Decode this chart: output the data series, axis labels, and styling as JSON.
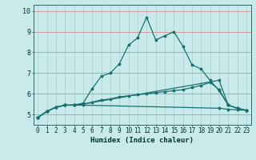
{
  "title": "",
  "xlabel": "Humidex (Indice chaleur)",
  "bg_color": "#c8eaea",
  "line_color": "#1a7070",
  "grid_color_h": "#cc9999",
  "grid_color_v": "#aacccc",
  "xlim": [
    -0.5,
    23.5
  ],
  "ylim": [
    4.5,
    10.3
  ],
  "xticks": [
    0,
    1,
    2,
    3,
    4,
    5,
    6,
    7,
    8,
    9,
    10,
    11,
    12,
    13,
    14,
    15,
    16,
    17,
    18,
    19,
    20,
    21,
    22,
    23
  ],
  "yticks": [
    5,
    6,
    7,
    8,
    9,
    10
  ],
  "line1_x": [
    0,
    1,
    2,
    3,
    4,
    5,
    6,
    7,
    8,
    9,
    10,
    11,
    12,
    13,
    14,
    15,
    16,
    17,
    18,
    19,
    20,
    21,
    22,
    23
  ],
  "line1_y": [
    4.85,
    5.15,
    5.35,
    5.45,
    5.45,
    5.55,
    6.25,
    6.85,
    7.0,
    7.45,
    8.35,
    8.7,
    9.7,
    8.6,
    8.8,
    9.0,
    8.3,
    7.4,
    7.2,
    6.65,
    6.15,
    5.45,
    5.3,
    5.2
  ],
  "line2_x": [
    0,
    1,
    2,
    3,
    4,
    5,
    6,
    7,
    8,
    9,
    10,
    11,
    12,
    13,
    14,
    15,
    16,
    17,
    18,
    19,
    20,
    21,
    22,
    23
  ],
  "line2_y": [
    4.85,
    5.15,
    5.35,
    5.45,
    5.45,
    5.5,
    5.6,
    5.7,
    5.75,
    5.85,
    5.9,
    5.95,
    6.0,
    6.05,
    6.1,
    6.15,
    6.2,
    6.3,
    6.4,
    6.55,
    6.2,
    5.45,
    5.3,
    5.2
  ],
  "line3_x": [
    0,
    1,
    2,
    3,
    4,
    5,
    20,
    21,
    22,
    23
  ],
  "line3_y": [
    4.85,
    5.15,
    5.35,
    5.45,
    5.45,
    5.5,
    6.65,
    5.45,
    5.3,
    5.2
  ],
  "line4_x": [
    0,
    1,
    2,
    3,
    4,
    5,
    20,
    21,
    22,
    23
  ],
  "line4_y": [
    4.85,
    5.15,
    5.35,
    5.45,
    5.45,
    5.45,
    5.3,
    5.25,
    5.22,
    5.2
  ],
  "xlabel_fontsize": 6.5,
  "tick_fontsize": 5.5
}
